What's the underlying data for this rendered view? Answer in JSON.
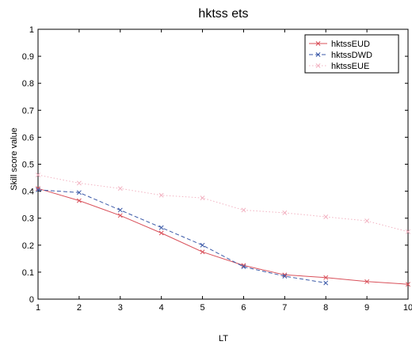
{
  "chart_data": {
    "type": "line",
    "title": "hktss ets",
    "xlabel": "LT",
    "ylabel": "Skill score value",
    "xlim": [
      1,
      10
    ],
    "ylim": [
      0,
      1
    ],
    "xticks": [
      "1",
      "2",
      "3",
      "4",
      "5",
      "6",
      "7",
      "8",
      "9",
      "10"
    ],
    "yticks": [
      "0",
      "0.1",
      "0.2",
      "0.3",
      "0.4",
      "0.5",
      "0.6",
      "0.7",
      "0.8",
      "0.9",
      "1"
    ],
    "grid": false,
    "legend_position": "top-right",
    "series": [
      {
        "name": "hktssEUD",
        "color": "#d9505a",
        "line_style": "solid",
        "marker": "x",
        "x": [
          1,
          2,
          3,
          4,
          5,
          6,
          7,
          8,
          9,
          10
        ],
        "y": [
          0.41,
          0.365,
          0.31,
          0.245,
          0.175,
          0.125,
          0.09,
          0.08,
          0.065,
          0.055
        ]
      },
      {
        "name": "hktssDWD",
        "color": "#3c5aa8",
        "line_style": "dashed",
        "marker": "x",
        "x": [
          1,
          2,
          3,
          4,
          5,
          6,
          7,
          8
        ],
        "y": [
          0.405,
          0.395,
          0.33,
          0.265,
          0.2,
          0.12,
          0.085,
          0.06
        ]
      },
      {
        "name": "hktssEUE",
        "color": "#f2b3c2",
        "line_style": "dotted",
        "marker": "x",
        "x": [
          1,
          2,
          3,
          4,
          5,
          6,
          7,
          8,
          9,
          10
        ],
        "y": [
          0.46,
          0.43,
          0.41,
          0.385,
          0.375,
          0.33,
          0.32,
          0.305,
          0.29,
          0.25
        ]
      }
    ]
  }
}
